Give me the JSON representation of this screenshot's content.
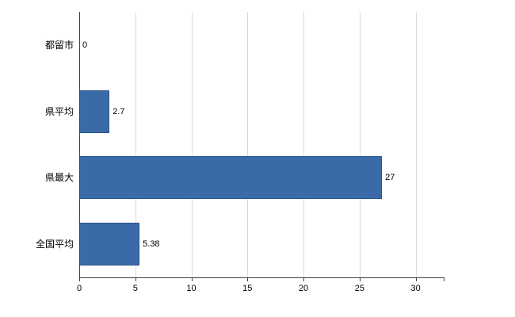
{
  "chart_data": {
    "type": "bar",
    "orientation": "horizontal",
    "title": "",
    "xlabel": "",
    "ylabel": "",
    "categories": [
      "都留市",
      "県平均",
      "県最大",
      "全国平均"
    ],
    "values": [
      0,
      2.7,
      27,
      5.38
    ],
    "value_labels": [
      "0",
      "2.7",
      "27",
      "5.38"
    ],
    "x_ticks": [
      0,
      5,
      10,
      15,
      20,
      25,
      30
    ],
    "xlim": [
      0,
      32.5
    ],
    "grid": true,
    "legend": "none",
    "bar_color": "#3A6BA8",
    "bar_border_color": "#2A5384",
    "grid_color": "#d9d9d9",
    "axis_color": "#404040",
    "background_color": "#ffffff"
  }
}
